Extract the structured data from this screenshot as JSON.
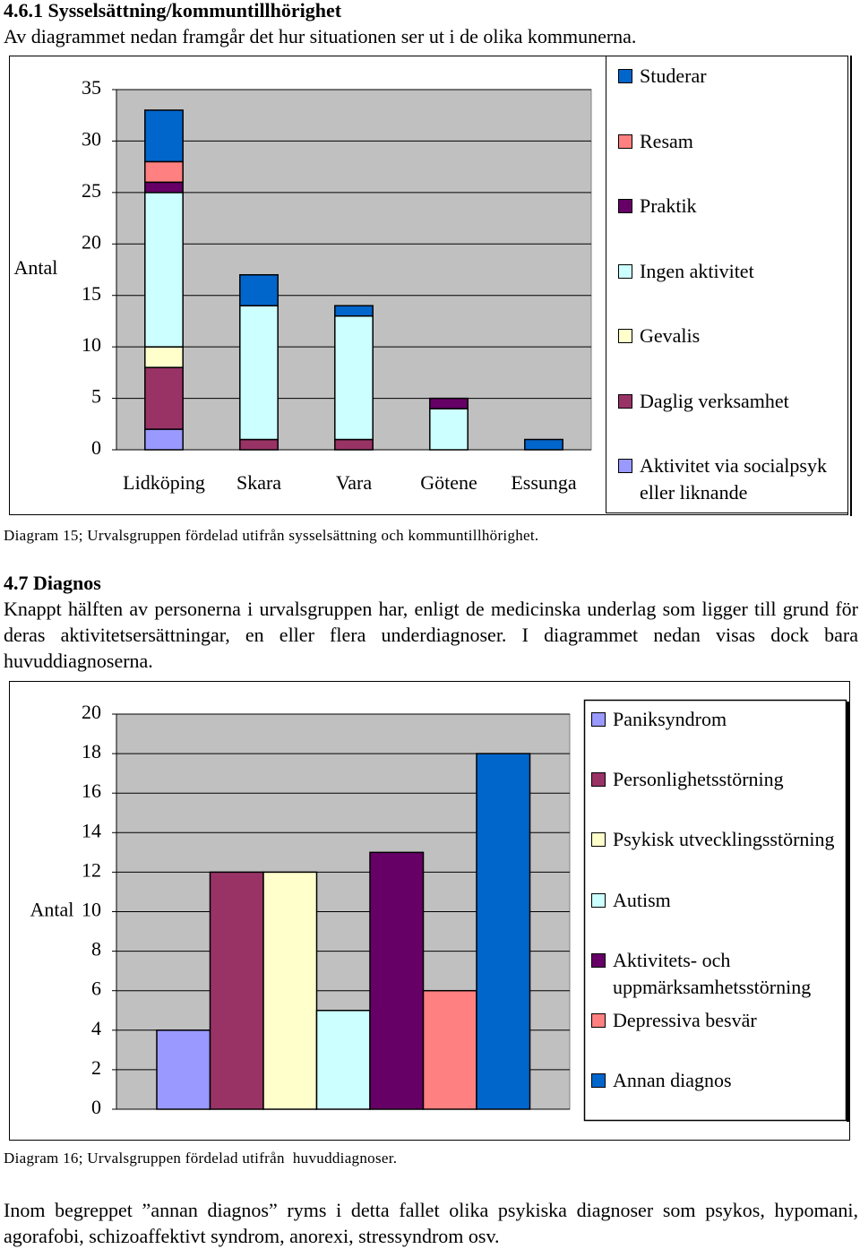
{
  "section1": {
    "heading": "4.6.1 Sysselsättning/kommuntillhörighet",
    "text": "Av diagrammet nedan framgår det hur situationen ser ut i de olika kommunerna."
  },
  "chart_data": [
    {
      "type": "stacked_bar",
      "y_label": "Antal",
      "categories": [
        "Lidköping",
        "Skara",
        "Vara",
        "Götene",
        "Essunga"
      ],
      "series": [
        {
          "name": "Aktivitet via socialpsyk eller liknande",
          "color": "#9999ff",
          "values": [
            2,
            0,
            0,
            0,
            0
          ]
        },
        {
          "name": "Daglig verksamhet",
          "color": "#993366",
          "values": [
            6,
            1,
            1,
            0,
            0
          ]
        },
        {
          "name": "Gevalis",
          "color": "#ffffcc",
          "values": [
            2,
            0,
            0,
            0,
            0
          ]
        },
        {
          "name": "Ingen aktivitet",
          "color": "#ccffff",
          "values": [
            15,
            13,
            12,
            4,
            0
          ]
        },
        {
          "name": "Praktik",
          "color": "#660066",
          "values": [
            1,
            0,
            0,
            1,
            0
          ]
        },
        {
          "name": "Resam",
          "color": "#ff8080",
          "values": [
            2,
            0,
            0,
            0,
            0
          ]
        },
        {
          "name": "Studerar",
          "color": "#0066cc",
          "values": [
            5,
            3,
            1,
            0,
            1
          ]
        }
      ],
      "ylim": [
        0,
        35
      ],
      "yticks": [
        0,
        5,
        10,
        15,
        20,
        25,
        30,
        35
      ],
      "grid": true,
      "legend": "right"
    },
    {
      "type": "bar",
      "y_label": "Antal",
      "categories": [
        "Paniksyndrom",
        "Personlighetsstörning",
        "Psykisk utvecklingsstörning",
        "Autism",
        "Aktivitets- och uppmärksamhetsstörning",
        "Depressiva besvär",
        "Annan diagnos"
      ],
      "values": [
        4,
        12,
        12,
        5,
        13,
        6,
        18
      ],
      "colors": [
        "#9999ff",
        "#993366",
        "#ffffcc",
        "#ccffff",
        "#660066",
        "#ff8080",
        "#0066cc"
      ],
      "ylim": [
        0,
        20
      ],
      "yticks": [
        0,
        2,
        4,
        6,
        8,
        10,
        12,
        14,
        16,
        18,
        20
      ],
      "grid": true,
      "legend": "right"
    }
  ],
  "caption1": "Diagram 15; Urvalsgruppen fördelad utifrån sysselsättning och kommuntillhörighet.",
  "section2": {
    "heading": "4.7 Diagnos",
    "text": "Knappt hälften av personerna i urvalsgruppen har, enligt de medicinska underlag som ligger till grund för deras aktivitetsersättningar, en eller flera underdiagnoser. I diagrammet nedan visas dock bara huvuddiagnoserna."
  },
  "caption2": "Diagram 16; Urvalsgruppen fördelad utifrån  huvuddiagnoser.",
  "closing": "Inom begreppet ”annan diagnos” ryms i detta fallet olika psykiska diagnoser som psykos, hypomani, agorafobi, schizoaffektivt syndrom, anorexi, stressyndrom osv."
}
